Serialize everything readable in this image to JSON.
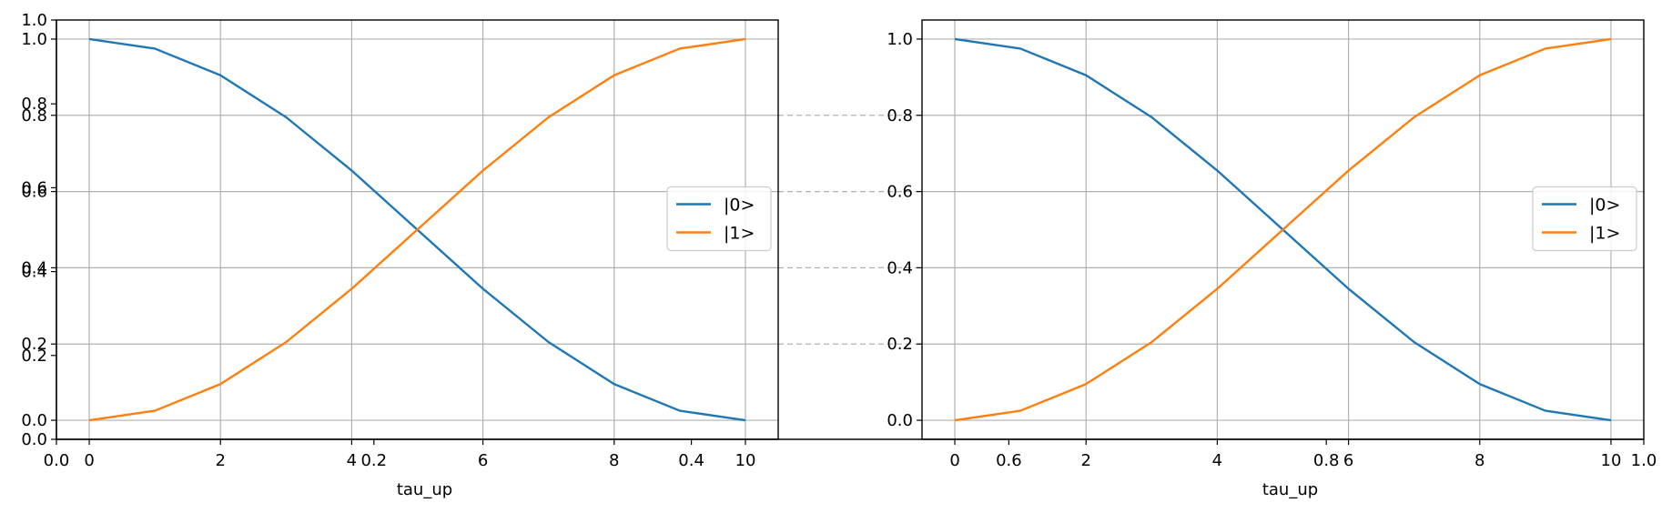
{
  "colors": {
    "series0": "#1f77b4",
    "series1": "#ff7f0e",
    "grid": "#b0b0b0",
    "axis": "#000000",
    "background": "#ffffff"
  },
  "chart_data": [
    {
      "type": "line",
      "title": "",
      "xlabel": "tau_up",
      "ylabel": "",
      "xlim": [
        -0.5,
        10.5
      ],
      "ylim": [
        -0.05,
        1.05
      ],
      "xticks": [
        0,
        2,
        4,
        6,
        8,
        10
      ],
      "xtick_labels": [
        "0",
        "2",
        "4",
        "6",
        "8",
        "10"
      ],
      "yticks": [
        0.0,
        0.2,
        0.4,
        0.6,
        0.8,
        1.0
      ],
      "ytick_labels": [
        "0.0",
        "0.2",
        "0.4",
        "0.6",
        "0.8",
        "1.0"
      ],
      "grid": true,
      "legend_position": "center right",
      "x": [
        0,
        1,
        2,
        3,
        4,
        5,
        6,
        7,
        8,
        9,
        10
      ],
      "series": [
        {
          "name": "|0>",
          "color": "#1f77b4",
          "values": [
            1.0,
            0.975,
            0.905,
            0.795,
            0.655,
            0.5,
            0.345,
            0.205,
            0.095,
            0.025,
            0.0
          ]
        },
        {
          "name": "|1>",
          "color": "#ff7f0e",
          "values": [
            0.0,
            0.025,
            0.095,
            0.205,
            0.345,
            0.5,
            0.655,
            0.795,
            0.905,
            0.975,
            1.0
          ]
        }
      ]
    },
    {
      "type": "line",
      "title": "",
      "xlabel": "tau_up",
      "ylabel": "",
      "xlim": [
        -0.5,
        10.5
      ],
      "ylim": [
        -0.05,
        1.05
      ],
      "xticks": [
        0,
        2,
        4,
        6,
        8,
        10
      ],
      "xtick_labels": [
        "0",
        "2",
        "4",
        "6",
        "8",
        "10"
      ],
      "yticks": [
        0.0,
        0.2,
        0.4,
        0.6,
        0.8,
        1.0
      ],
      "ytick_labels": [
        "0.0",
        "0.2",
        "0.4",
        "0.6",
        "0.8",
        "1.0"
      ],
      "grid": true,
      "legend_position": "center right",
      "x": [
        0,
        1,
        2,
        3,
        4,
        5,
        6,
        7,
        8,
        9,
        10
      ],
      "series": [
        {
          "name": "|0>",
          "color": "#1f77b4",
          "values": [
            1.0,
            0.975,
            0.905,
            0.795,
            0.655,
            0.5,
            0.345,
            0.205,
            0.095,
            0.025,
            0.0
          ]
        },
        {
          "name": "|1>",
          "color": "#ff7f0e",
          "values": [
            0.0,
            0.025,
            0.095,
            0.205,
            0.345,
            0.5,
            0.655,
            0.795,
            0.905,
            0.975,
            1.0
          ]
        }
      ]
    }
  ],
  "overlay_axis": {
    "xlim": [
      0,
      1
    ],
    "ylim": [
      0,
      1
    ],
    "xticks": [
      0.0,
      0.2,
      0.4,
      0.6,
      0.8,
      1.0
    ],
    "xtick_labels": [
      "0.0",
      "0.2",
      "0.4",
      "0.6",
      "0.8",
      "1.0"
    ],
    "yticks": [
      0.0,
      0.2,
      0.4,
      0.6,
      0.8,
      1.0
    ],
    "ytick_labels": [
      "0.0",
      "0.2",
      "0.4",
      "0.6",
      "0.8",
      "1.0"
    ]
  },
  "connector_levels": [
    0.2,
    0.4,
    0.6,
    0.8
  ]
}
